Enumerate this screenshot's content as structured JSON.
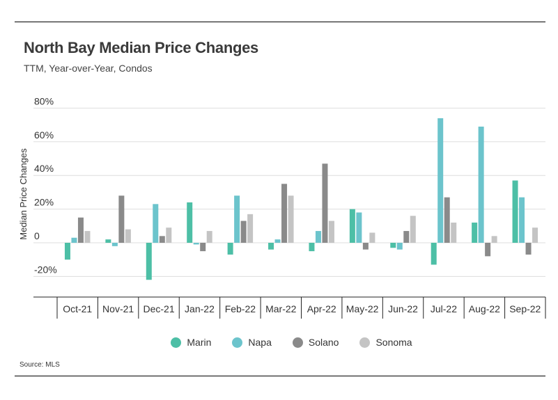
{
  "title": "North Bay Median Price Changes",
  "subtitle": "TTM, Year-over-Year, Condos",
  "source": "Source: MLS",
  "chart_data": {
    "type": "bar",
    "ylabel": "Median Price Changes",
    "ylim": [
      -32,
      80
    ],
    "yticks": [
      80,
      60,
      40,
      20,
      0,
      -20
    ],
    "ytick_labels": [
      "80%",
      "60%",
      "40%",
      "20%",
      "0",
      "-20%"
    ],
    "grid": true,
    "legend": "bottom-center",
    "categories": [
      "Oct-21",
      "Nov-21",
      "Dec-21",
      "Jan-22",
      "Feb-22",
      "Mar-22",
      "Apr-22",
      "May-22",
      "Jun-22",
      "Jul-22",
      "Aug-22",
      "Sep-22"
    ],
    "series": [
      {
        "name": "Marin",
        "color": "#4dbfa6",
        "values": [
          -10,
          2,
          -22,
          24,
          -7,
          -4,
          -5,
          20,
          -3,
          -13,
          12,
          37
        ]
      },
      {
        "name": "Napa",
        "color": "#6cc4cc",
        "values": [
          3,
          -2,
          23,
          -1,
          28,
          2,
          7,
          18,
          -4,
          74,
          69,
          27
        ]
      },
      {
        "name": "Solano",
        "color": "#8a8a8a",
        "values": [
          15,
          28,
          4,
          -5,
          13,
          35,
          47,
          -4,
          7,
          27,
          -8,
          -7
        ]
      },
      {
        "name": "Sonoma",
        "color": "#c4c4c4",
        "values": [
          7,
          8,
          9,
          7,
          17,
          28,
          13,
          6,
          16,
          12,
          4,
          9
        ]
      }
    ]
  }
}
